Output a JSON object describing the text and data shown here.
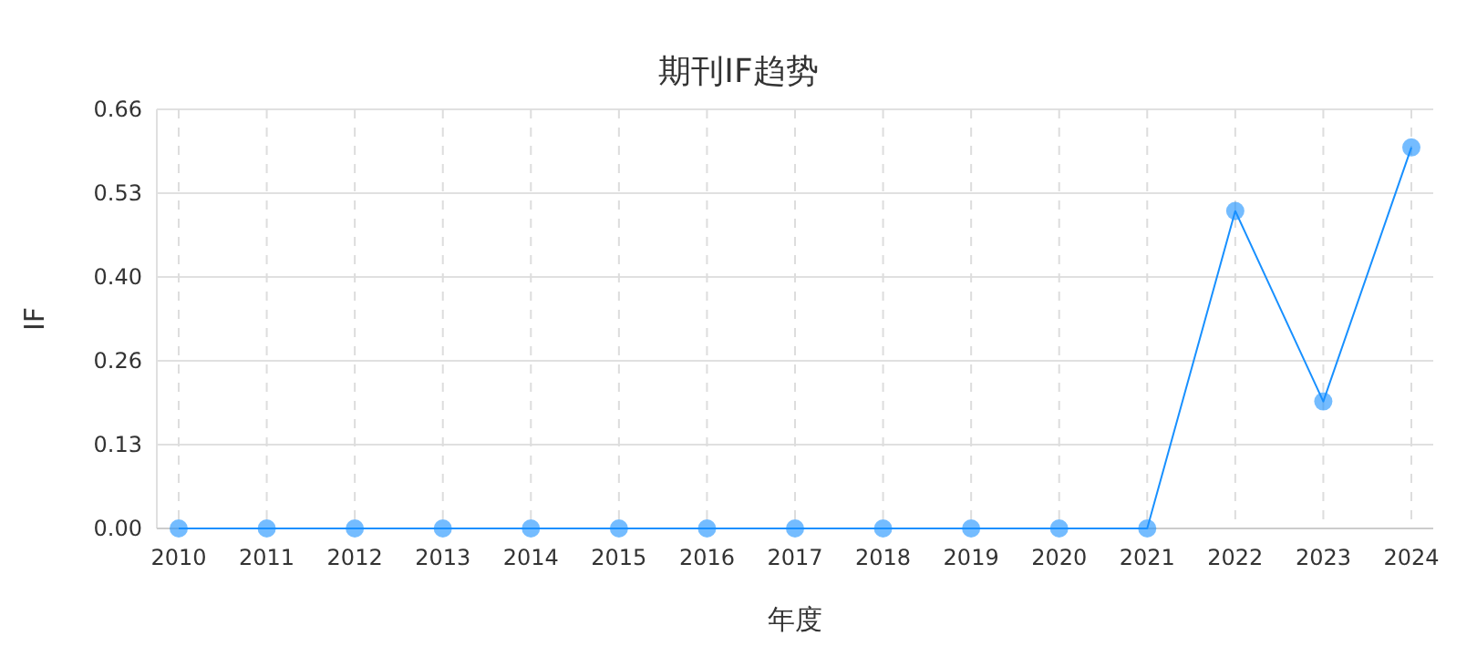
{
  "chart_data": {
    "type": "line",
    "title": "期刊IF趋势",
    "xlabel": "年度",
    "ylabel": "IF",
    "categories": [
      "2010",
      "2011",
      "2012",
      "2013",
      "2014",
      "2015",
      "2016",
      "2017",
      "2018",
      "2019",
      "2020",
      "2021",
      "2022",
      "2023",
      "2024"
    ],
    "series": [
      {
        "color": "#1890ff",
        "values": [
          0,
          0,
          0,
          0,
          0,
          0,
          0,
          0,
          0,
          0,
          0,
          0,
          0.5,
          0.2,
          0.6
        ]
      }
    ],
    "ylim": [
      0,
      0.66
    ],
    "yticks": [
      {
        "value": 0,
        "label": "0.00"
      },
      {
        "value": 0.132,
        "label": "0.13"
      },
      {
        "value": 0.264,
        "label": "0.26"
      },
      {
        "value": 0.396,
        "label": "0.40"
      },
      {
        "value": 0.528,
        "label": "0.53"
      },
      {
        "value": 0.66,
        "label": "0.66"
      }
    ],
    "grid": true,
    "marker": "circle",
    "line_style": "solid"
  }
}
